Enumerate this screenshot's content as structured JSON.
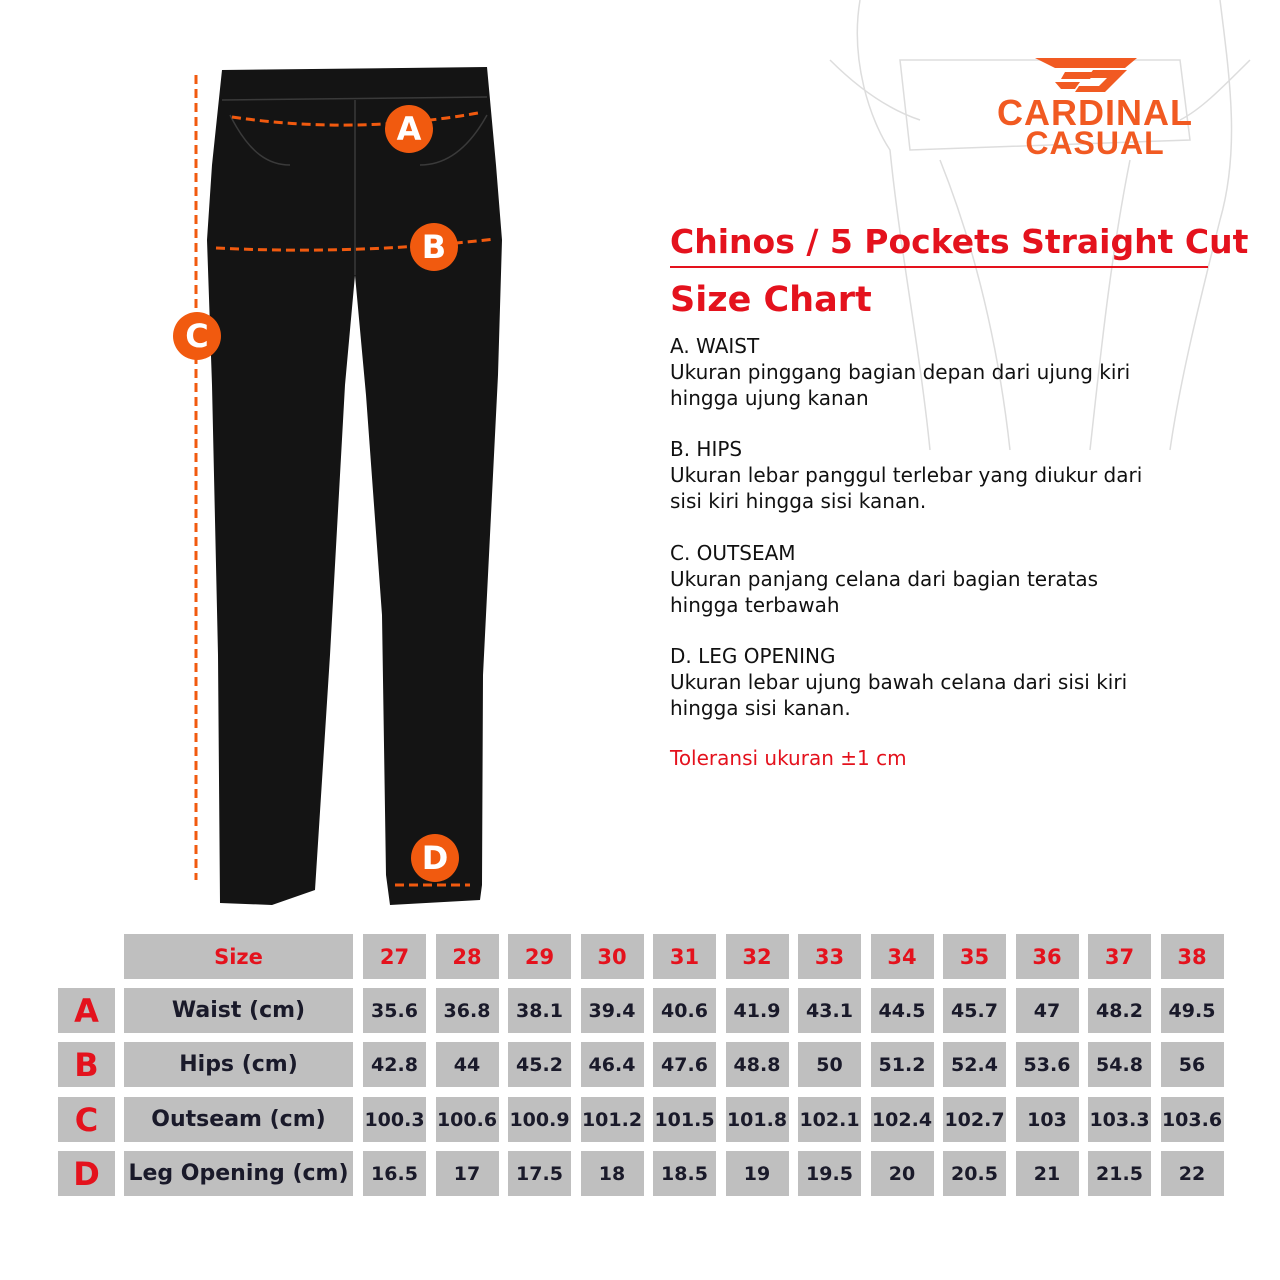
{
  "brand": {
    "line1": "CARDINAL",
    "line2": "CASUAL",
    "color": "#f15a22"
  },
  "title": "Chinos / 5 Pockets Straight Cut",
  "subtitle": "Size Chart",
  "descriptions": [
    {
      "heading": "A. WAIST",
      "text": "Ukuran pinggang bagian depan dari ujung kiri hingga ujung kanan"
    },
    {
      "heading": "B. HIPS",
      "text": "Ukuran lebar panggul terlebar yang diukur dari sisi kiri hingga sisi kanan."
    },
    {
      "heading": "C. OUTSEAM",
      "text": "Ukuran panjang celana dari bagian teratas hingga terbawah"
    },
    {
      "heading": "D. LEG OPENING",
      "text": "Ukuran lebar ujung bawah celana dari sisi kiri hingga sisi kanan."
    }
  ],
  "tolerance": "Toleransi ukuran ±1 cm",
  "markers": [
    "A",
    "B",
    "C",
    "D"
  ],
  "table": {
    "header_label": "Size",
    "sizes": [
      "27",
      "28",
      "29",
      "30",
      "31",
      "32",
      "33",
      "34",
      "35",
      "36",
      "37",
      "38"
    ],
    "rows": [
      {
        "letter": "A",
        "label": "Waist (cm)",
        "values": [
          "35.6",
          "36.8",
          "38.1",
          "39.4",
          "40.6",
          "41.9",
          "43.1",
          "44.5",
          "45.7",
          "47",
          "48.2",
          "49.5"
        ]
      },
      {
        "letter": "B",
        "label": "Hips (cm)",
        "values": [
          "42.8",
          "44",
          "45.2",
          "46.4",
          "47.6",
          "48.8",
          "50",
          "51.2",
          "52.4",
          "53.6",
          "54.8",
          "56"
        ]
      },
      {
        "letter": "C",
        "label": "Outseam (cm)",
        "values": [
          "100.3",
          "100.6",
          "100.9",
          "101.2",
          "101.5",
          "101.8",
          "102.1",
          "102.4",
          "102.7",
          "103",
          "103.3",
          "103.6"
        ]
      },
      {
        "letter": "D",
        "label": "Leg Opening (cm)",
        "values": [
          "16.5",
          "17",
          "17.5",
          "18",
          "18.5",
          "19",
          "19.5",
          "20",
          "20.5",
          "21",
          "21.5",
          "22"
        ]
      }
    ]
  },
  "colors": {
    "accent_red": "#e4121d",
    "marker_orange": "#f15a0f",
    "cell_gray": "#bfbfbf"
  }
}
